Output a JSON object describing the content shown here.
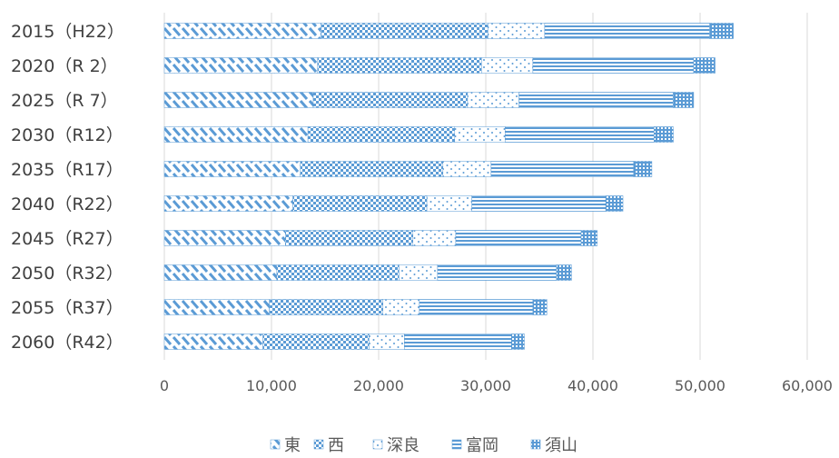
{
  "chart_data": {
    "type": "bar",
    "orientation": "horizontal",
    "stacked": true,
    "categories": [
      "2015（H22）",
      "2020（R 2）",
      "2025（R 7）",
      "2030（R12）",
      "2035（R17）",
      "2040（R22）",
      "2045（R27）",
      "2050（R32）",
      "2055（R37）",
      "2060（R42）"
    ],
    "series": [
      {
        "name": "東",
        "pattern": "diagonal",
        "values": [
          14600,
          14300,
          13900,
          13400,
          12700,
          12000,
          11300,
          10500,
          9800,
          9200
        ]
      },
      {
        "name": "西",
        "pattern": "checker",
        "values": [
          15600,
          15300,
          14400,
          13700,
          13300,
          12500,
          11900,
          11400,
          10600,
          9900
        ]
      },
      {
        "name": "深良",
        "pattern": "dots",
        "values": [
          5300,
          4800,
          4800,
          4700,
          4500,
          4200,
          4000,
          3600,
          3400,
          3300
        ]
      },
      {
        "name": "富岡",
        "pattern": "hlines",
        "values": [
          15400,
          15000,
          14400,
          13900,
          13300,
          12500,
          11700,
          11100,
          10600,
          10000
        ]
      },
      {
        "name": "須山",
        "pattern": "weave",
        "values": [
          2200,
          2000,
          1900,
          1800,
          1700,
          1600,
          1500,
          1400,
          1300,
          1200
        ]
      }
    ],
    "xlim": [
      0,
      60000
    ],
    "xticks": [
      "0",
      "10,000",
      "20,000",
      "30,000",
      "40,000",
      "50,000",
      "60,000"
    ],
    "grid": true,
    "legend_position": "bottom",
    "color": "#5b9bd5"
  }
}
